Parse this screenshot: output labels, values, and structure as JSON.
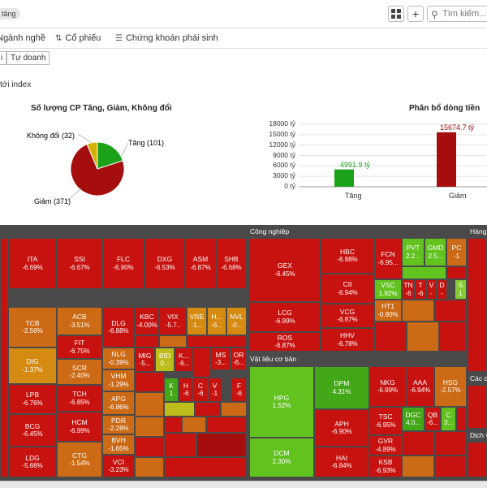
{
  "header": {
    "badge": "tăng",
    "search_placeholder": "Tìm kiếm...",
    "grid_icon": "grid-icon",
    "add_icon": "plus-icon",
    "search_icon": "search-icon"
  },
  "tabs": [
    {
      "label": "Ngành nghề",
      "icon": "industry-icon"
    },
    {
      "label": "Cổ phiếu",
      "icon": "sort-icon"
    },
    {
      "label": "Chứng khoán phái sinh",
      "icon": "list-icon"
    }
  ],
  "subtabs": [
    "i",
    "Tự doanh"
  ],
  "index_label": "tới index",
  "pie": {
    "title": "Số lượng CP Tăng, Giảm, Không đổi",
    "labels": {
      "up": "Tăng (101)",
      "down": "Giảm (371)",
      "flat": "Không đổi (32)"
    },
    "colors": {
      "up": "#1aa31a",
      "down": "#a60d0d",
      "flat": "#d4b106"
    }
  },
  "bar": {
    "title": "Phân bổ dòng tiền",
    "value_labels": [
      "4991.9 tỷ",
      "15674.7 tỷ"
    ],
    "tick_labels": [
      "18000 tỷ",
      "15000 tỷ",
      "12000 tỷ",
      "9000 tỷ",
      "6000 tỷ",
      "3000 tỷ",
      "0 tỷ"
    ]
  },
  "chart_data": [
    {
      "type": "pie",
      "title": "Số lượng CP Tăng, Giảm, Không đổi",
      "categories": [
        "Tăng",
        "Giảm",
        "Không đổi"
      ],
      "values": [
        101,
        371,
        32
      ]
    },
    {
      "type": "bar",
      "title": "Phân bổ dòng tiền",
      "categories": [
        "Tăng",
        "Giảm"
      ],
      "values": [
        4991.9,
        15674.7
      ],
      "ylim": [
        0,
        18000
      ],
      "yticks": [
        0,
        3000,
        6000,
        9000,
        12000,
        15000,
        18000
      ],
      "grid": true
    }
  ],
  "treemap": {
    "sections": [
      {
        "name": "Công nghiệp"
      },
      {
        "name": "Vật liệu cơ bản"
      },
      {
        "name": "Hàng"
      },
      {
        "name": "Các d"
      },
      {
        "name": "Dịch v"
      }
    ],
    "stocks": [
      {
        "t": "ITA",
        "p": "-6.69%"
      },
      {
        "t": "SSI",
        "p": "-6.67%"
      },
      {
        "t": "FLC",
        "p": "-6.90%"
      },
      {
        "t": "DXG",
        "p": "-6.53%"
      },
      {
        "t": "ASM",
        "p": "-6.87%"
      },
      {
        "t": "SHB",
        "p": "-6.68%"
      },
      {
        "t": "TCB",
        "p": "-2.56%"
      },
      {
        "t": "ACB",
        "p": "-3.51%"
      },
      {
        "t": "DLG",
        "p": "-6.88%"
      },
      {
        "t": "KBC",
        "p": "-4.00%"
      },
      {
        "t": "VIX",
        "p": "-5.7.."
      },
      {
        "t": "VRE",
        "p": "-1..."
      },
      {
        "t": "H...",
        "p": "-6..."
      },
      {
        "t": "NVL",
        "p": "-0..."
      },
      {
        "t": "FIT",
        "p": "-6.75%"
      },
      {
        "t": "DIG",
        "p": "-1.37%"
      },
      {
        "t": "NLG",
        "p": "-0.39%"
      },
      {
        "t": "MIG",
        "p": "-5..."
      },
      {
        "t": "BID",
        "p": "0..."
      },
      {
        "t": "K...",
        "p": "-6..."
      },
      {
        "t": "MS",
        "p": "-3..."
      },
      {
        "t": "OR",
        "p": "-6..."
      },
      {
        "t": "SCR",
        "p": "-2.40%"
      },
      {
        "t": "VHM",
        "p": "-1.29%"
      },
      {
        "t": "K",
        "p": "1"
      },
      {
        "t": "H",
        "p": "-6"
      },
      {
        "t": "C",
        "p": "-6"
      },
      {
        "t": "V",
        "p": "-1"
      },
      {
        "t": "F",
        "p": "-6"
      },
      {
        "t": "LPB",
        "p": "-6.76%"
      },
      {
        "t": "TCH",
        "p": "-6.85%"
      },
      {
        "t": "APG",
        "p": "-6.86%"
      },
      {
        "t": "BCG",
        "p": "-6.45%"
      },
      {
        "t": "HCM",
        "p": "-6.99%"
      },
      {
        "t": "PDR",
        "p": "-2.28%"
      },
      {
        "t": "BVH",
        "p": "-1.65%"
      },
      {
        "t": "LDG",
        "p": "-5.66%"
      },
      {
        "t": "CTG",
        "p": "-1.54%"
      },
      {
        "t": "VCI",
        "p": "-3.23%"
      },
      {
        "t": "GEX",
        "p": "-6.45%"
      },
      {
        "t": "HBC",
        "p": "-6.88%"
      },
      {
        "t": "FCN",
        "p": "-6.95..."
      },
      {
        "t": "PVT",
        "p": "2.2..."
      },
      {
        "t": "GMD",
        "p": "2.5..."
      },
      {
        "t": "PC",
        "p": "-1"
      },
      {
        "t": "CII",
        "p": "-6.94%"
      },
      {
        "t": "VSC",
        "p": "1.92%"
      },
      {
        "t": "TN",
        "p": "-6"
      },
      {
        "t": "T",
        "p": "-6"
      },
      {
        "t": "V",
        "p": "-"
      },
      {
        "t": "D",
        "p": "-"
      },
      {
        "t": "S",
        "p": "1"
      },
      {
        "t": "LCG",
        "p": "-6.99%"
      },
      {
        "t": "VCG",
        "p": "-6.87%"
      },
      {
        "t": "HT1",
        "p": "-0.90%"
      },
      {
        "t": "ROS",
        "p": "-6.87%"
      },
      {
        "t": "HHV",
        "p": "-6.78%"
      },
      {
        "t": "HPG",
        "p": "1.52%"
      },
      {
        "t": "DPM",
        "p": "4.31%"
      },
      {
        "t": "NKG",
        "p": "-6.99%"
      },
      {
        "t": "AAA",
        "p": "-6.94%"
      },
      {
        "t": "HSG",
        "p": "-2.57%"
      },
      {
        "t": "APH",
        "p": "-6.90%"
      },
      {
        "t": "TSC",
        "p": "-6.95%"
      },
      {
        "t": "DGC",
        "p": "4.0..."
      },
      {
        "t": "QB",
        "p": "-6..."
      },
      {
        "t": "C",
        "p": "3..."
      },
      {
        "t": "GVR",
        "p": "-4.89%"
      },
      {
        "t": "DCM",
        "p": "2.30%"
      },
      {
        "t": "HAI",
        "p": "-6.84%"
      },
      {
        "t": "KSB",
        "p": "-6.93%"
      }
    ]
  }
}
